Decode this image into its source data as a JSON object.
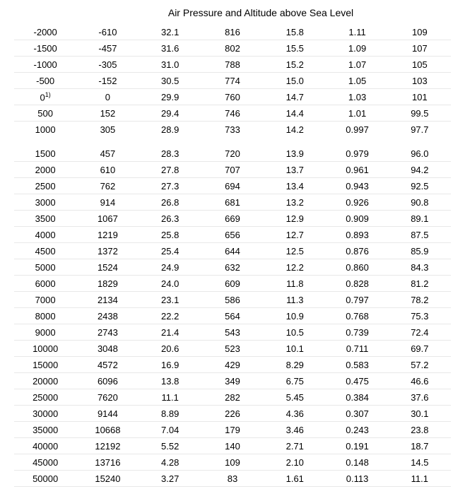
{
  "title": "Air Pressure and Altitude above Sea Level",
  "table": {
    "type": "table",
    "background_color": "#ffffff",
    "grid_color": "#e8e8e8",
    "font_size": 13,
    "text_color": "#000000",
    "column_count": 7,
    "column_alignments": [
      "center",
      "center",
      "center",
      "center",
      "center",
      "center",
      "center"
    ],
    "rows": [
      [
        "-2000",
        "-610",
        "32.1",
        "816",
        "15.8",
        "1.11",
        "109"
      ],
      [
        "-1500",
        "-457",
        "31.6",
        "802",
        "15.5",
        "1.09",
        "107"
      ],
      [
        "-1000",
        "-305",
        "31.0",
        "788",
        "15.2",
        "1.07",
        "105"
      ],
      [
        "-500",
        "-152",
        "30.5",
        "774",
        "15.0",
        "1.05",
        "103"
      ],
      [
        "0<sup>1)</sup>",
        "0",
        "29.9",
        "760",
        "14.7",
        "1.03",
        "101"
      ],
      [
        "500",
        "152",
        "29.4",
        "746",
        "14.4",
        "1.01",
        "99.5"
      ],
      [
        "1000",
        "305",
        "28.9",
        "733",
        "14.2",
        "0.997",
        "97.7"
      ],
      [
        "1500",
        "457",
        "28.3",
        "720",
        "13.9",
        "0.979",
        "96.0"
      ],
      [
        "2000",
        "610",
        "27.8",
        "707",
        "13.7",
        "0.961",
        "94.2"
      ],
      [
        "2500",
        "762",
        "27.3",
        "694",
        "13.4",
        "0.943",
        "92.5"
      ],
      [
        "3000",
        "914",
        "26.8",
        "681",
        "13.2",
        "0.926",
        "90.8"
      ],
      [
        "3500",
        "1067",
        "26.3",
        "669",
        "12.9",
        "0.909",
        "89.1"
      ],
      [
        "4000",
        "1219",
        "25.8",
        "656",
        "12.7",
        "0.893",
        "87.5"
      ],
      [
        "4500",
        "1372",
        "25.4",
        "644",
        "12.5",
        "0.876",
        "85.9"
      ],
      [
        "5000",
        "1524",
        "24.9",
        "632",
        "12.2",
        "0.860",
        "84.3"
      ],
      [
        "6000",
        "1829",
        "24.0",
        "609",
        "11.8",
        "0.828",
        "81.2"
      ],
      [
        "7000",
        "2134",
        "23.1",
        "586",
        "11.3",
        "0.797",
        "78.2"
      ],
      [
        "8000",
        "2438",
        "22.2",
        "564",
        "10.9",
        "0.768",
        "75.3"
      ],
      [
        "9000",
        "2743",
        "21.4",
        "543",
        "10.5",
        "0.739",
        "72.4"
      ],
      [
        "10000",
        "3048",
        "20.6",
        "523",
        "10.1",
        "0.711",
        "69.7"
      ],
      [
        "15000",
        "4572",
        "16.9",
        "429",
        "8.29",
        "0.583",
        "57.2"
      ],
      [
        "20000",
        "6096",
        "13.8",
        "349",
        "6.75",
        "0.475",
        "46.6"
      ],
      [
        "25000",
        "7620",
        "11.1",
        "282",
        "5.45",
        "0.384",
        "37.6"
      ],
      [
        "30000",
        "9144",
        "8.89",
        "226",
        "4.36",
        "0.307",
        "30.1"
      ],
      [
        "35000",
        "10668",
        "7.04",
        "179",
        "3.46",
        "0.243",
        "23.8"
      ],
      [
        "40000",
        "12192",
        "5.52",
        "140",
        "2.71",
        "0.191",
        "18.7"
      ],
      [
        "45000",
        "13716",
        "4.28",
        "109",
        "2.10",
        "0.148",
        "14.5"
      ],
      [
        "50000",
        "15240",
        "3.27",
        "83",
        "1.61",
        "0.113",
        "11.1"
      ]
    ],
    "gap_after_row_index": 6
  }
}
